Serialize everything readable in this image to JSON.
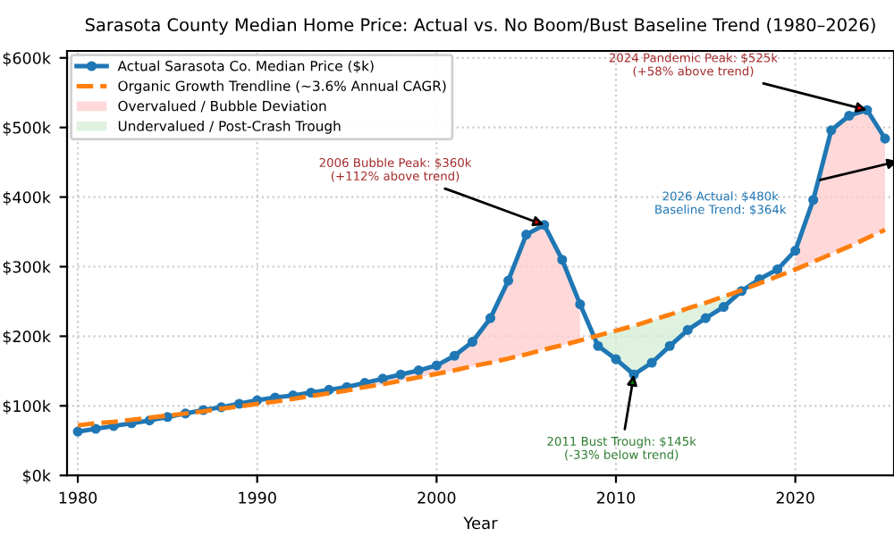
{
  "chart_data": {
    "type": "line",
    "title": "Sarasota County Median Home Price: Actual vs. No Boom/Bust Baseline Trend (1980–2026)",
    "xlabel": "Year",
    "x": [
      1980,
      1981,
      1982,
      1983,
      1984,
      1985,
      1986,
      1987,
      1988,
      1989,
      1990,
      1991,
      1992,
      1993,
      1994,
      1995,
      1996,
      1997,
      1998,
      1999,
      2000,
      2001,
      2002,
      2003,
      2004,
      2005,
      2006,
      2007,
      2008,
      2009,
      2010,
      2011,
      2012,
      2013,
      2014,
      2015,
      2016,
      2017,
      2018,
      2019,
      2020,
      2021,
      2022,
      2023,
      2024,
      2025
    ],
    "series": [
      {
        "name": "Actual Sarasota Co. Median Price ($k)",
        "color": "#1f77b4",
        "marker": "circle",
        "line_style": "solid",
        "values": [
          63,
          67,
          71,
          75,
          79,
          84,
          89,
          94,
          98,
          103,
          108,
          112,
          115,
          119,
          123,
          127,
          133,
          139,
          145,
          151,
          158,
          172,
          192,
          226,
          280,
          346,
          360,
          310,
          246,
          186,
          167,
          145,
          162,
          186,
          209,
          226,
          242,
          265,
          282,
          296,
          323,
          396,
          496,
          517,
          525,
          484
        ]
      },
      {
        "name": "Organic Growth Trendline (~3.6% Annual CAGR)",
        "color": "#ff7f0e",
        "marker": "none",
        "line_style": "dashed",
        "values": [
          72,
          75,
          77,
          80,
          83,
          86,
          89,
          92,
          96,
          99,
          103,
          106,
          110,
          114,
          118,
          122,
          127,
          131,
          136,
          141,
          146,
          151,
          157,
          162,
          168,
          174,
          181,
          187,
          194,
          201,
          208,
          215,
          223,
          231,
          240,
          248,
          257,
          266,
          276,
          286,
          296,
          307,
          318,
          329,
          341,
          353
        ]
      },
      {
        "name": "Overvalued / Bubble Deviation",
        "type": "line",
        "color": "#ffcccc",
        "values": [
          null,
          null,
          null,
          null,
          null,
          null,
          null,
          null,
          null,
          null,
          null,
          null,
          null,
          null,
          null,
          null,
          null,
          null,
          null,
          null,
          null,
          null,
          null,
          null,
          null,
          null,
          null,
          null,
          null,
          null,
          null,
          null,
          null,
          null,
          null,
          null,
          null,
          null,
          null,
          null,
          null,
          null,
          null,
          null,
          null,
          null
        ],
        "upper": [
          null,
          null,
          null,
          null,
          null,
          null,
          null,
          null,
          null,
          null,
          null,
          null,
          null,
          null,
          null,
          null,
          133,
          139,
          145,
          151,
          158,
          172,
          192,
          226,
          280,
          346,
          360,
          310,
          246,
          null,
          null,
          null,
          null,
          null,
          null,
          null,
          null,
          null,
          null,
          null,
          323,
          396,
          496,
          517,
          525,
          484
        ],
        "lower": [
          null,
          null,
          null,
          null,
          null,
          null,
          null,
          null,
          null,
          null,
          null,
          null,
          null,
          null,
          null,
          null,
          127,
          131,
          136,
          141,
          146,
          151,
          157,
          162,
          168,
          174,
          181,
          187,
          194,
          null,
          null,
          null,
          null,
          null,
          null,
          null,
          null,
          null,
          null,
          null,
          296,
          307,
          318,
          329,
          341,
          353
        ]
      },
      {
        "name": "Undervalued / Post-Crash Trough",
        "type": "line",
        "color": "#d4edd4",
        "values": [
          null,
          null,
          null,
          null,
          null,
          null,
          null,
          null,
          null,
          null,
          null,
          null,
          null,
          null,
          null,
          null,
          null,
          null,
          null,
          null,
          null,
          null,
          null,
          null,
          null,
          null,
          null,
          null,
          null,
          null,
          null,
          null,
          null,
          null,
          null,
          null,
          null,
          null,
          null,
          null,
          null,
          null,
          null,
          null,
          null,
          null
        ],
        "upper": [
          null,
          null,
          null,
          null,
          null,
          null,
          null,
          null,
          null,
          null,
          null,
          null,
          null,
          null,
          null,
          null,
          null,
          null,
          null,
          null,
          null,
          null,
          null,
          null,
          null,
          null,
          null,
          null,
          null,
          201,
          208,
          215,
          223,
          231,
          240,
          248,
          257,
          266,
          null,
          null,
          null,
          null,
          null,
          null,
          null,
          null
        ],
        "lower": [
          null,
          null,
          null,
          null,
          null,
          null,
          null,
          null,
          null,
          null,
          null,
          null,
          null,
          null,
          null,
          null,
          null,
          null,
          null,
          null,
          null,
          null,
          null,
          null,
          null,
          null,
          null,
          null,
          null,
          186,
          167,
          145,
          162,
          186,
          209,
          226,
          242,
          265,
          null,
          null,
          null,
          null,
          null,
          null,
          null,
          null
        ]
      }
    ],
    "xlim": [
      1979.4,
      2025.5
    ],
    "xticks": [
      1980,
      1990,
      2000,
      2010,
      2020
    ],
    "ylim": [
      0,
      610
    ],
    "yticks": [
      {
        "value": 0,
        "label": "$0k"
      },
      {
        "value": 100,
        "label": "$100k"
      },
      {
        "value": 200,
        "label": "$200k"
      },
      {
        "value": 300,
        "label": "$300k"
      },
      {
        "value": 400,
        "label": "$400k"
      },
      {
        "value": 500,
        "label": "$500k"
      },
      {
        "value": 600,
        "label": "$600k"
      }
    ],
    "annotations": [
      {
        "text": "2006 Bubble Peak: $360k\n(+112% above trend)",
        "x": 2006,
        "y": 360
      },
      {
        "text": "2011 Bust Trough: $145k\n(-33% below trend)",
        "x": 2011,
        "y": 145
      },
      {
        "text": "2024 Pandemic Peak: $525k\n(+58% above trend)",
        "x": 2024,
        "y": 525
      },
      "2026 Actual: $480k\nBaseline Trend: $364k"
    ],
    "grid": true,
    "legend": "top left"
  }
}
